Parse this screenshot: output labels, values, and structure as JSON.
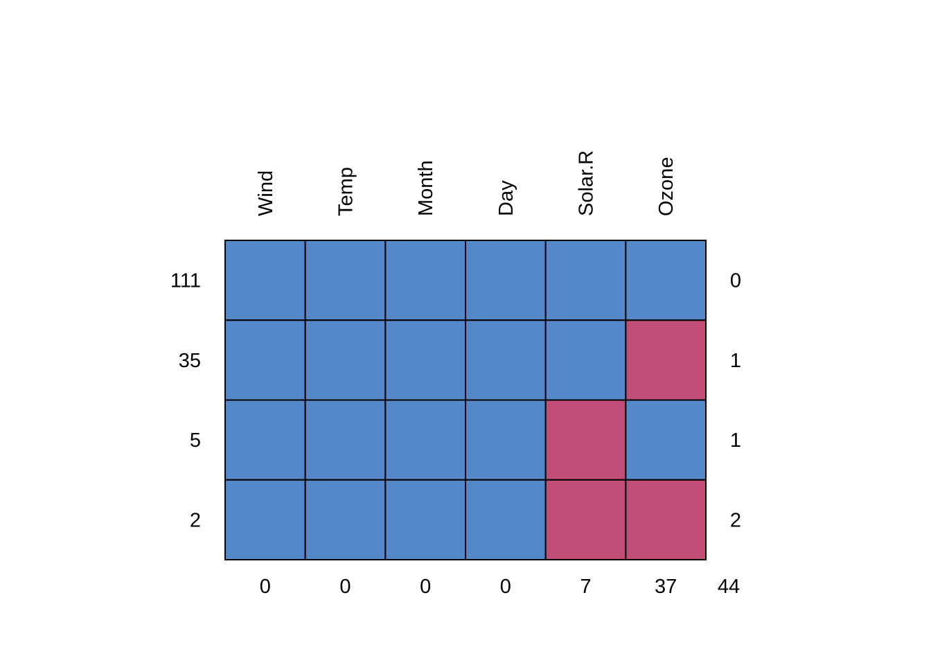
{
  "chart_data": {
    "type": "heatmap",
    "columns": [
      "Wind",
      "Temp",
      "Month",
      "Day",
      "Solar.R",
      "Ozone"
    ],
    "rows": [
      {
        "count": "111",
        "pattern": [
          1,
          1,
          1,
          1,
          1,
          1
        ],
        "missing": "0"
      },
      {
        "count": "35",
        "pattern": [
          1,
          1,
          1,
          1,
          1,
          0
        ],
        "missing": "1"
      },
      {
        "count": "5",
        "pattern": [
          1,
          1,
          1,
          1,
          0,
          1
        ],
        "missing": "1"
      },
      {
        "count": "2",
        "pattern": [
          1,
          1,
          1,
          1,
          0,
          0
        ],
        "missing": "2"
      }
    ],
    "column_missing_totals": [
      "0",
      "0",
      "0",
      "0",
      "7",
      "37"
    ],
    "total_missing": "44",
    "colors": {
      "observed": "#5488C9",
      "missing": "#C04E77",
      "border": "#000000"
    }
  }
}
